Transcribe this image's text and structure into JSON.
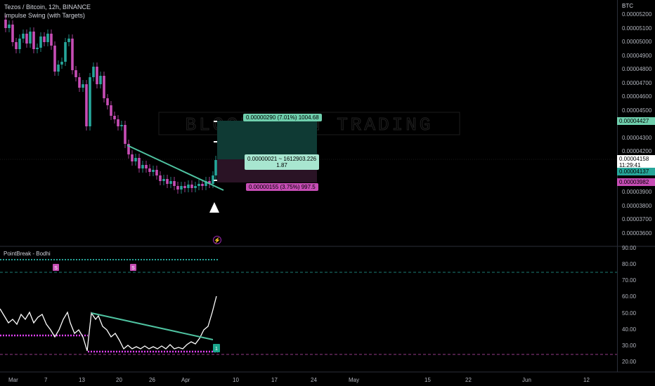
{
  "header": {
    "title": "Tezos / Bitcoin, 12h, BINANCE",
    "indicator": "Impulse Swing (with Targets)",
    "watermark": "BLOCKCHAIN TRADING"
  },
  "price_axis": {
    "unit": "BTC",
    "ticks": [
      "0.00005200",
      "0.00005100",
      "0.00005000",
      "0.00004900",
      "0.00004800",
      "0.00004700",
      "0.00004600",
      "0.00004500",
      "0.00004300",
      "0.00004200",
      "0.00003900",
      "0.00003800",
      "0.00003700",
      "0.00003600"
    ],
    "labels": {
      "target": "0.00004427",
      "current": "0.00004158",
      "countdown": "11:29:41",
      "entry": "0.00004137",
      "stop": "0.00003982"
    }
  },
  "position_tool": {
    "target_text": "0.00000290 (7.01%) 1004.68",
    "mid_line1": "0.00000021 ~ 1612903.226",
    "mid_line2": "1.87",
    "stop_text": "0.00000155 (3.75%) 997.5"
  },
  "oscillator": {
    "name": "PointBreak - Bodhi",
    "ticks": [
      "90.00",
      "80.00",
      "70.00",
      "60.00",
      "50.00",
      "40.00",
      "30.00",
      "20.00"
    ],
    "markers": [
      "S",
      "S"
    ],
    "badge": "1"
  },
  "time_axis": {
    "ticks": [
      "Mar",
      "7",
      "13",
      "20",
      "26",
      "Apr",
      "10",
      "17",
      "24",
      "May",
      "15",
      "22",
      "Jun",
      "12"
    ]
  },
  "colors": {
    "up": "#26a69a",
    "down": "#c74db5",
    "accent_teal": "#4fc3a1",
    "magenta": "#e040fb"
  }
}
